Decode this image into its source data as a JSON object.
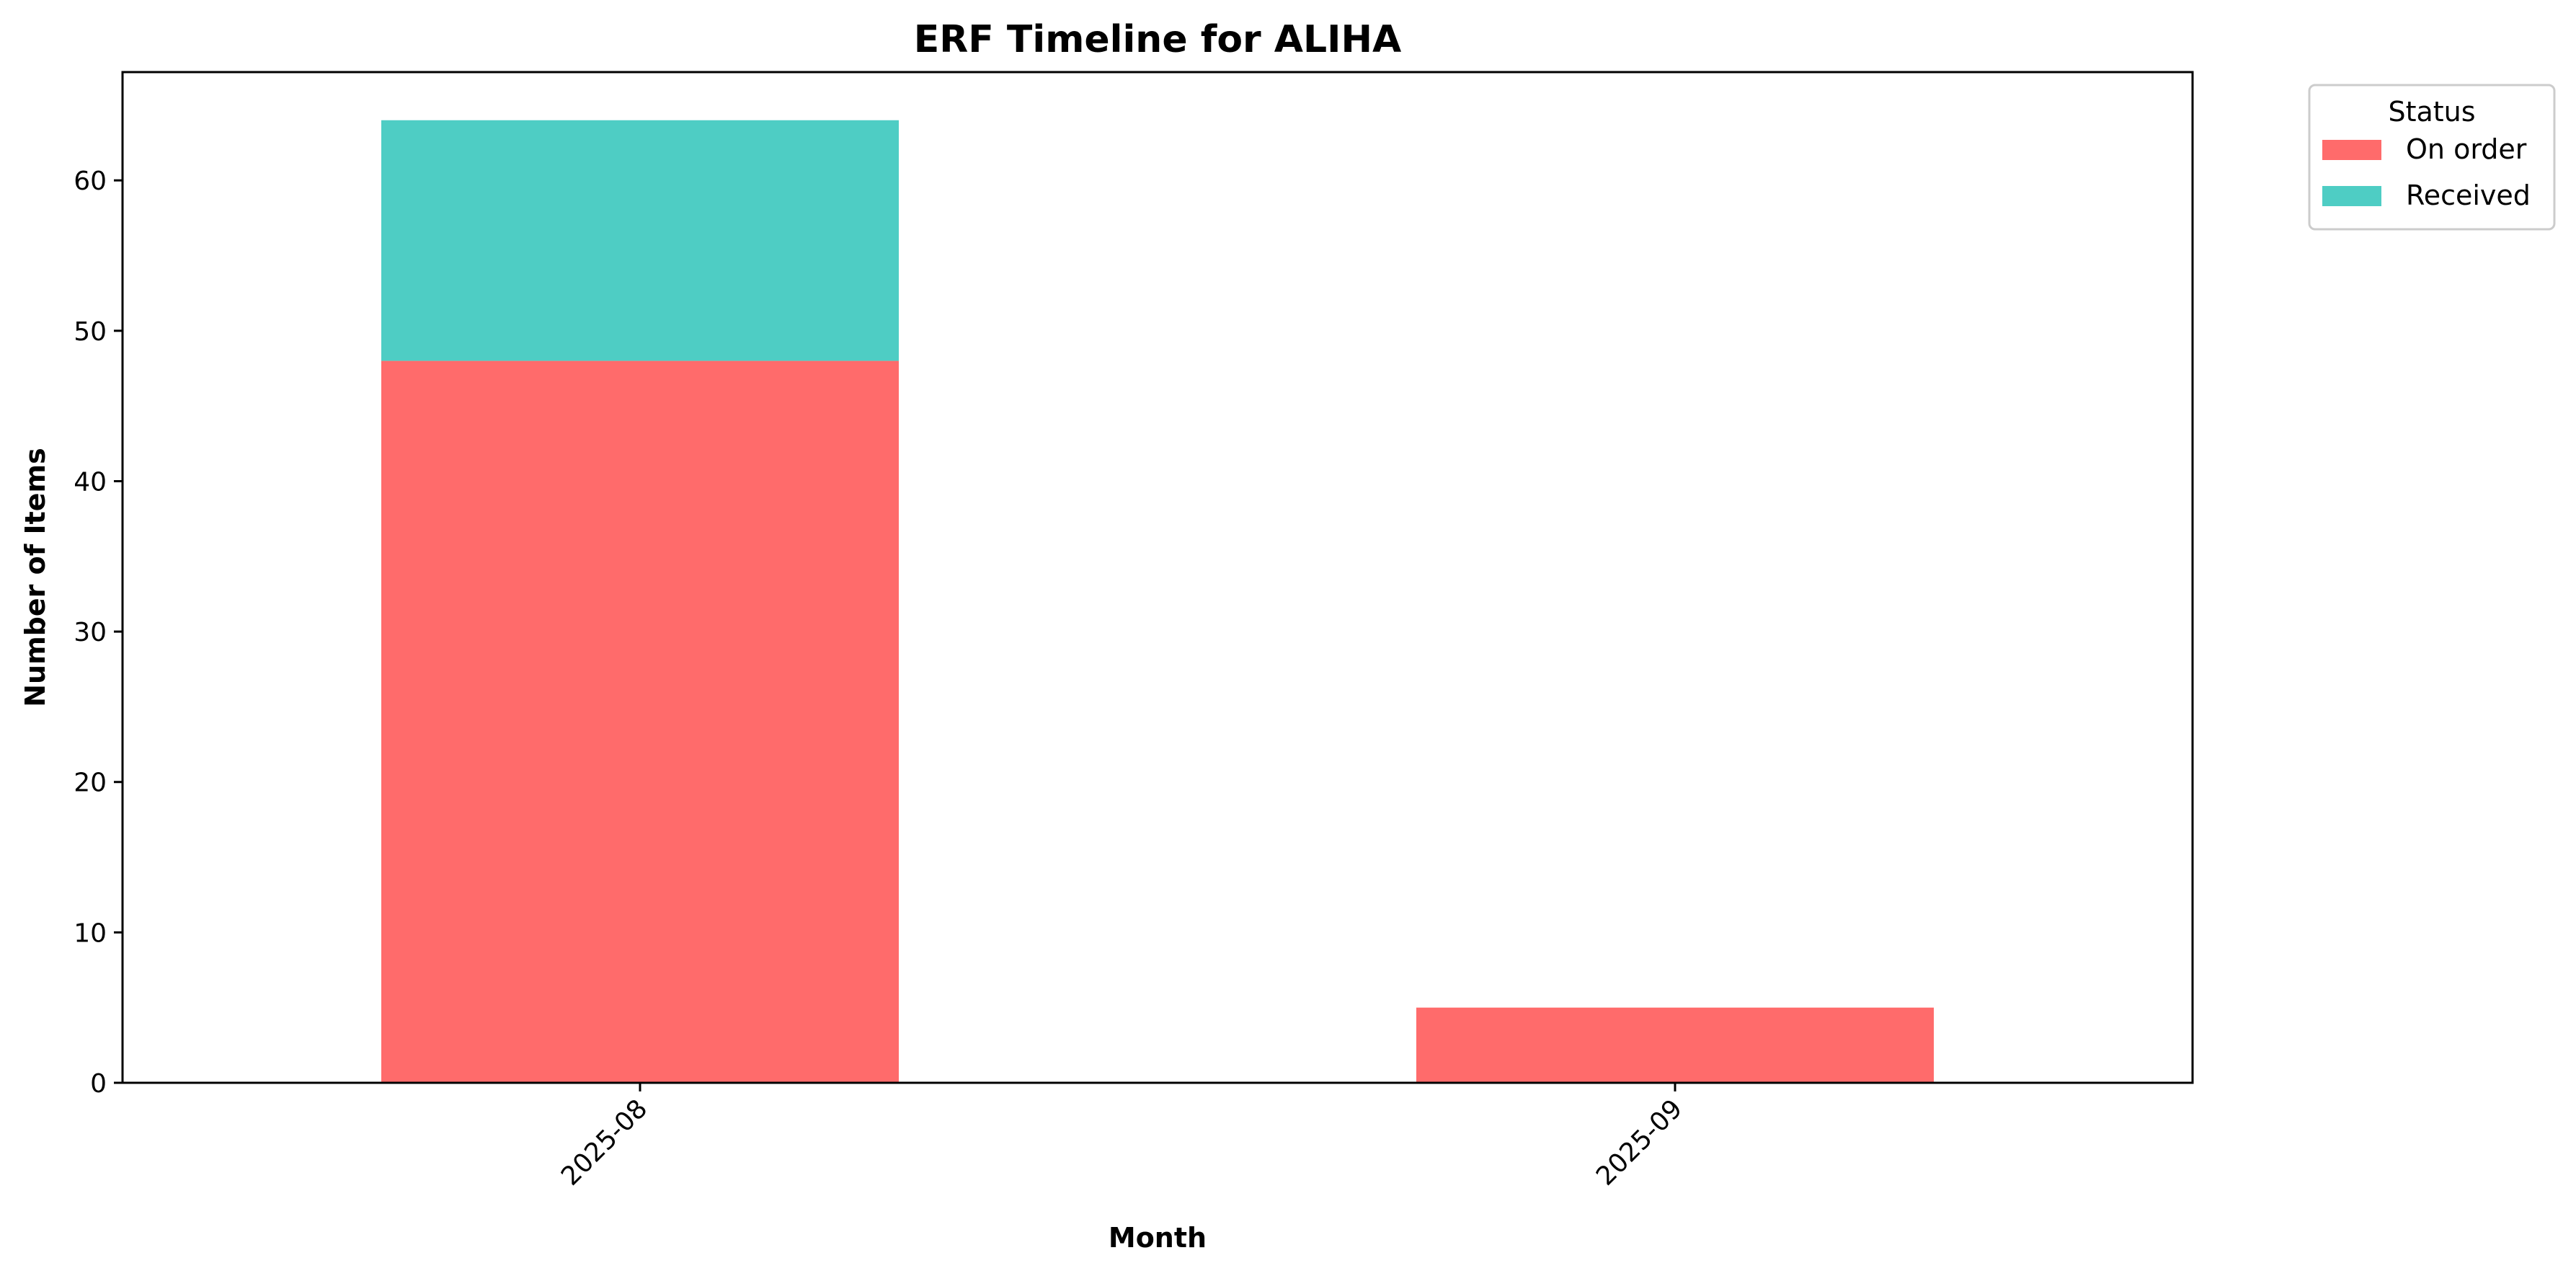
{
  "chart_data": {
    "type": "bar",
    "stacked": true,
    "title": "ERF Timeline for ALIHA",
    "xlabel": "Month",
    "ylabel": "Number of Items",
    "categories": [
      "2025-08",
      "2025-09"
    ],
    "series": [
      {
        "name": "On order",
        "values": [
          48,
          5
        ],
        "color": "#ff6b6b"
      },
      {
        "name": "Received",
        "values": [
          16,
          0
        ],
        "color": "#4ecdc4"
      }
    ],
    "ylim": [
      0,
      67.2
    ],
    "yticks": [
      0,
      10,
      20,
      30,
      40,
      50,
      60
    ],
    "grid": false,
    "legend": {
      "title": "Status",
      "placement": "outside-top-right"
    }
  }
}
